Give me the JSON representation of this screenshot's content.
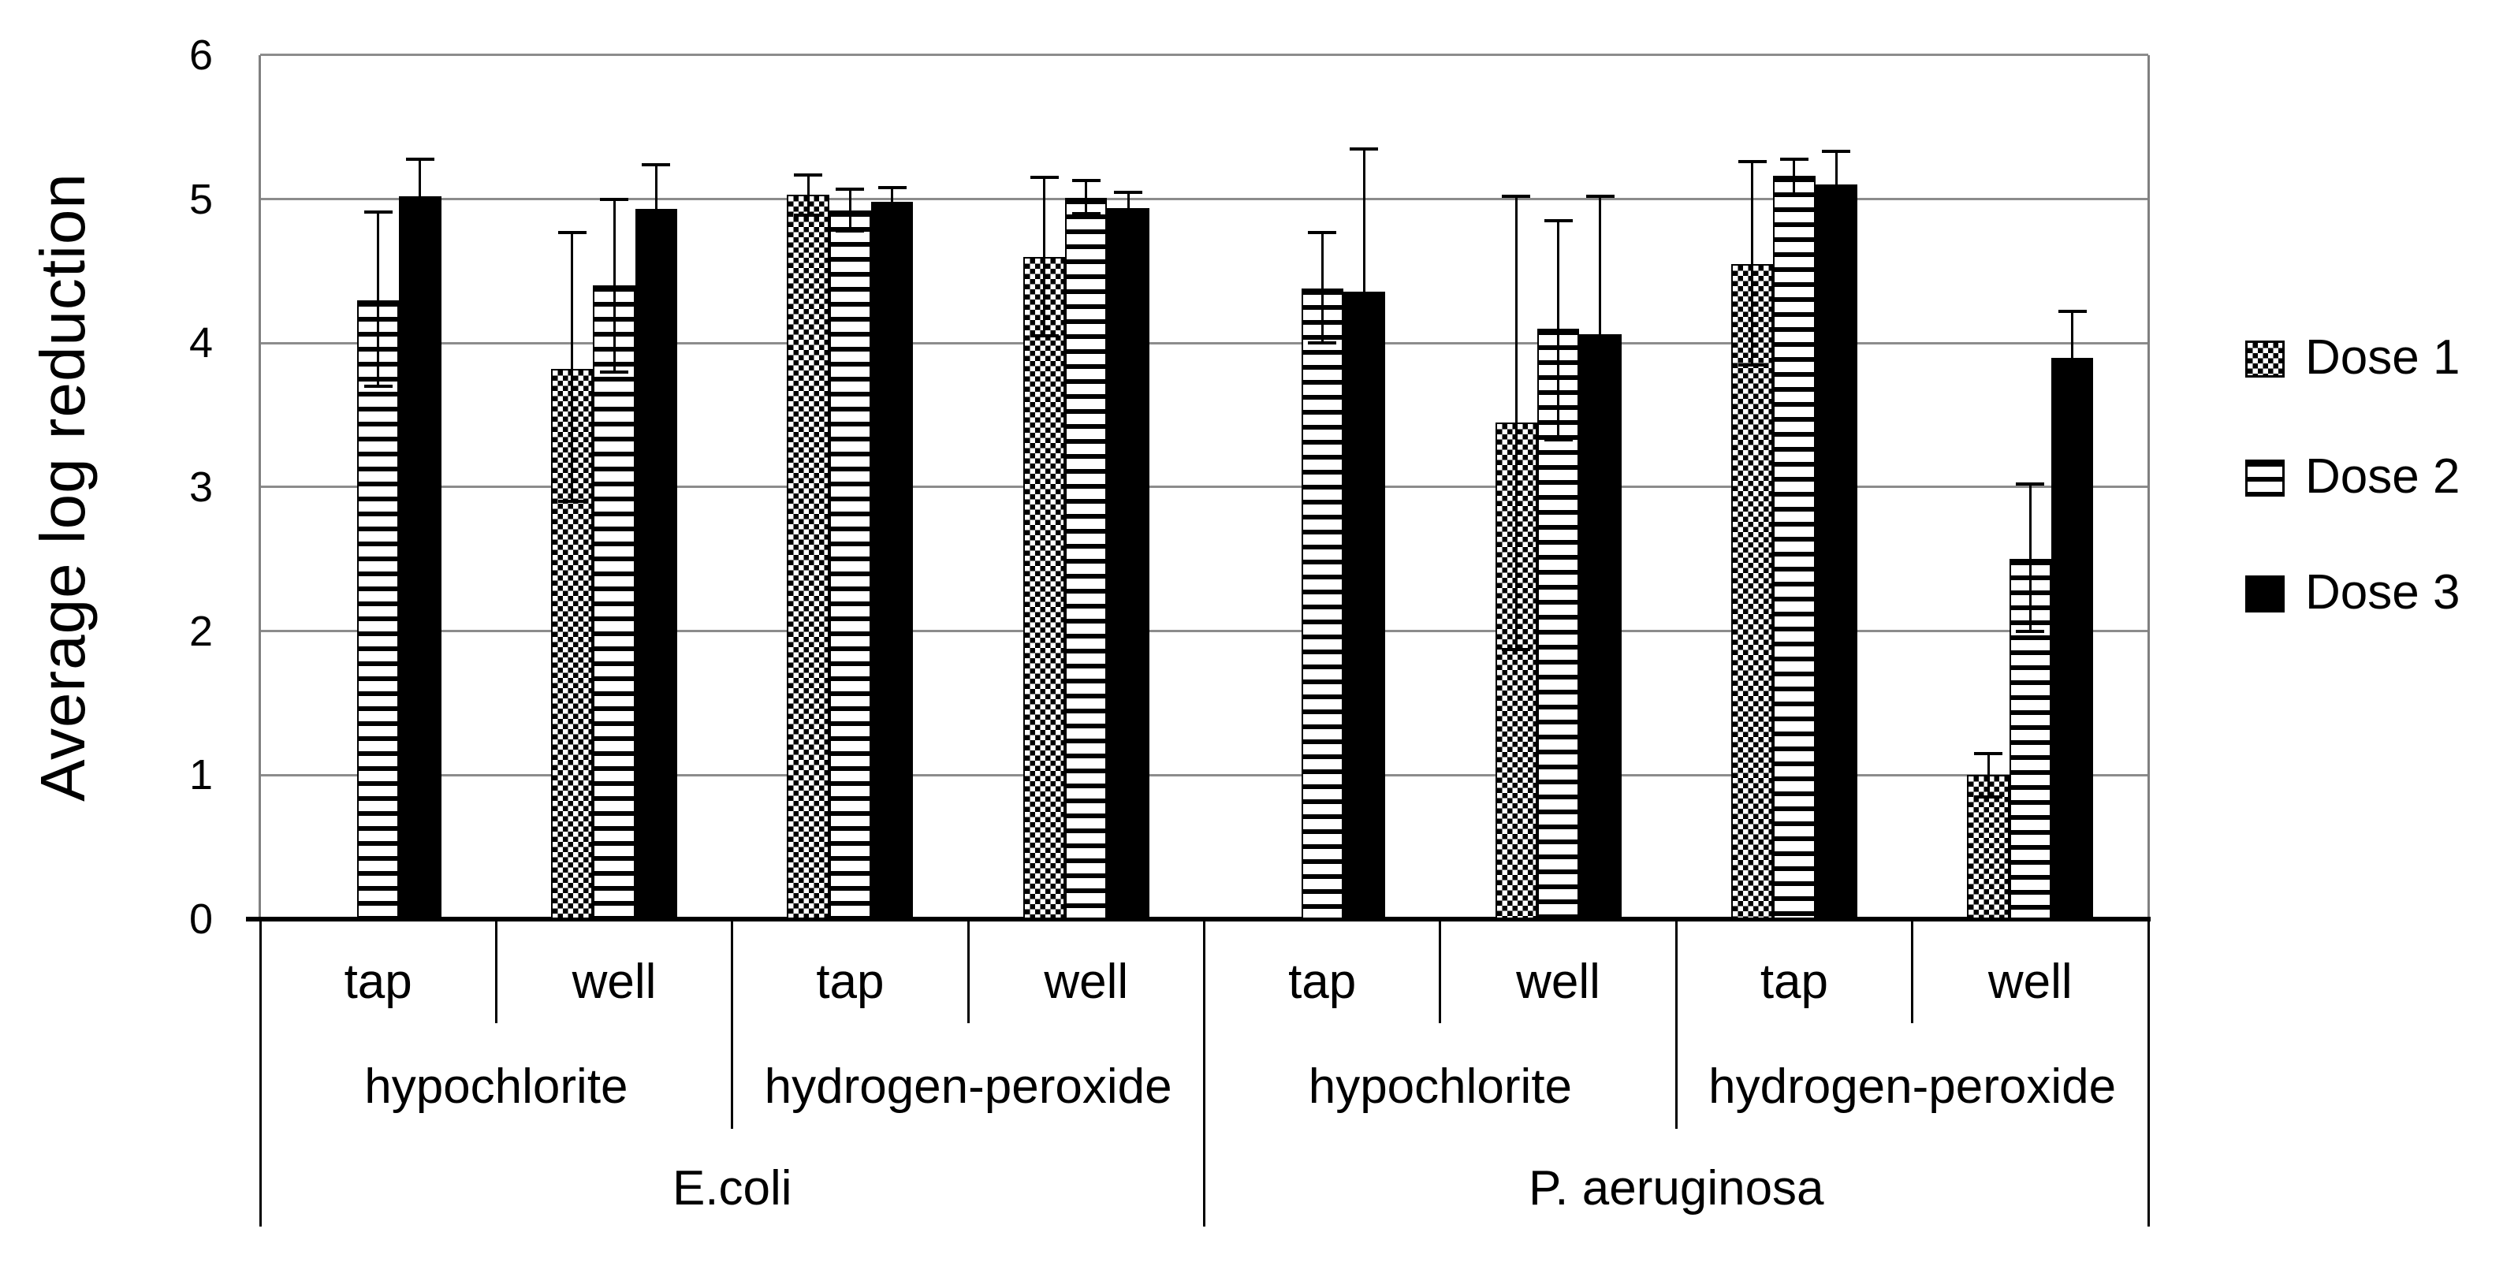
{
  "chart_data": {
    "type": "bar",
    "title": "",
    "ylabel": "Average log reduction",
    "xlabel": "",
    "ylim": [
      0,
      6
    ],
    "yticks": [
      "0",
      "1",
      "2",
      "3",
      "4",
      "5",
      "6"
    ],
    "grid": "horizontal-gray",
    "legend_position": "right",
    "legend": [
      {
        "name": "Dose 1",
        "pattern": "checkerboard"
      },
      {
        "name": "Dose 2",
        "pattern": "horizontal-stripes"
      },
      {
        "name": "Dose 3",
        "pattern": "solid-black"
      }
    ],
    "categories": {
      "level1": [
        "tap",
        "well",
        "tap",
        "well",
        "tap",
        "well",
        "tap",
        "well"
      ],
      "level2": [
        {
          "label": "hypochlorite",
          "span": 2
        },
        {
          "label": "hydrogen-peroxide",
          "span": 2
        },
        {
          "label": "hypochlorite",
          "span": 2
        },
        {
          "label": "hydrogen-peroxide",
          "span": 2
        }
      ],
      "level3": [
        {
          "label": "E.coli",
          "span": 4
        },
        {
          "label": "P. aeruginosa",
          "span": 4
        }
      ]
    },
    "groups": [
      {
        "species": "E.coli",
        "disinfectant": "hypochlorite",
        "water": "tap",
        "bars": [
          null,
          {
            "dose": "Dose 2",
            "value": 4.3,
            "err_lo": 3.7,
            "err_hi": 4.91
          },
          {
            "dose": "Dose 3",
            "value": 5.02,
            "err_lo": 4.76,
            "err_hi": 5.28
          }
        ]
      },
      {
        "species": "E.coli",
        "disinfectant": "hypochlorite",
        "water": "well",
        "bars": [
          {
            "dose": "Dose 1",
            "value": 3.82,
            "err_lo": 2.9,
            "err_hi": 4.77
          },
          {
            "dose": "Dose 2",
            "value": 4.4,
            "err_lo": 3.8,
            "err_hi": 5.0
          },
          {
            "dose": "Dose 3",
            "value": 4.93,
            "err_lo": 4.62,
            "err_hi": 5.24
          }
        ]
      },
      {
        "species": "E.coli",
        "disinfectant": "hydrogen-peroxide",
        "water": "tap",
        "bars": [
          {
            "dose": "Dose 1",
            "value": 5.03,
            "err_lo": 4.89,
            "err_hi": 5.17
          },
          {
            "dose": "Dose 2",
            "value": 4.92,
            "err_lo": 4.78,
            "err_hi": 5.07
          },
          {
            "dose": "Dose 3",
            "value": 4.98,
            "err_lo": 4.88,
            "err_hi": 5.08
          }
        ]
      },
      {
        "species": "E.coli",
        "disinfectant": "hydrogen-peroxide",
        "water": "well",
        "bars": [
          {
            "dose": "Dose 1",
            "value": 4.6,
            "err_lo": 4.05,
            "err_hi": 5.15
          },
          {
            "dose": "Dose 2",
            "value": 5.01,
            "err_lo": 4.9,
            "err_hi": 5.13
          },
          {
            "dose": "Dose 3",
            "value": 4.94,
            "err_lo": 4.83,
            "err_hi": 5.05
          }
        ]
      },
      {
        "species": "P. aeruginosa",
        "disinfectant": "hypochlorite",
        "water": "tap",
        "bars": [
          null,
          {
            "dose": "Dose 2",
            "value": 4.38,
            "err_lo": 4.0,
            "err_hi": 4.77
          },
          {
            "dose": "Dose 3",
            "value": 4.36,
            "err_lo": 3.37,
            "err_hi": 5.35
          }
        ]
      },
      {
        "species": "P. aeruginosa",
        "disinfectant": "hypochlorite",
        "water": "well",
        "bars": [
          {
            "dose": "Dose 1",
            "value": 3.45,
            "err_lo": 1.87,
            "err_hi": 5.02
          },
          {
            "dose": "Dose 2",
            "value": 4.1,
            "err_lo": 3.33,
            "err_hi": 4.85
          },
          {
            "dose": "Dose 3",
            "value": 4.06,
            "err_lo": 3.1,
            "err_hi": 5.02
          }
        ]
      },
      {
        "species": "P. aeruginosa",
        "disinfectant": "hydrogen-peroxide",
        "water": "tap",
        "bars": [
          {
            "dose": "Dose 1",
            "value": 4.55,
            "err_lo": 3.85,
            "err_hi": 5.26
          },
          {
            "dose": "Dose 2",
            "value": 5.16,
            "err_lo": 5.03,
            "err_hi": 5.28
          },
          {
            "dose": "Dose 3",
            "value": 5.1,
            "err_lo": 4.88,
            "err_hi": 5.33
          }
        ]
      },
      {
        "species": "P. aeruginosa",
        "disinfectant": "hydrogen-peroxide",
        "water": "well",
        "bars": [
          {
            "dose": "Dose 1",
            "value": 1.0,
            "err_lo": 0.85,
            "err_hi": 1.15
          },
          {
            "dose": "Dose 2",
            "value": 2.5,
            "err_lo": 2.0,
            "err_hi": 3.02
          },
          {
            "dose": "Dose 3",
            "value": 3.9,
            "err_lo": 3.58,
            "err_hi": 4.22
          }
        ]
      }
    ]
  }
}
